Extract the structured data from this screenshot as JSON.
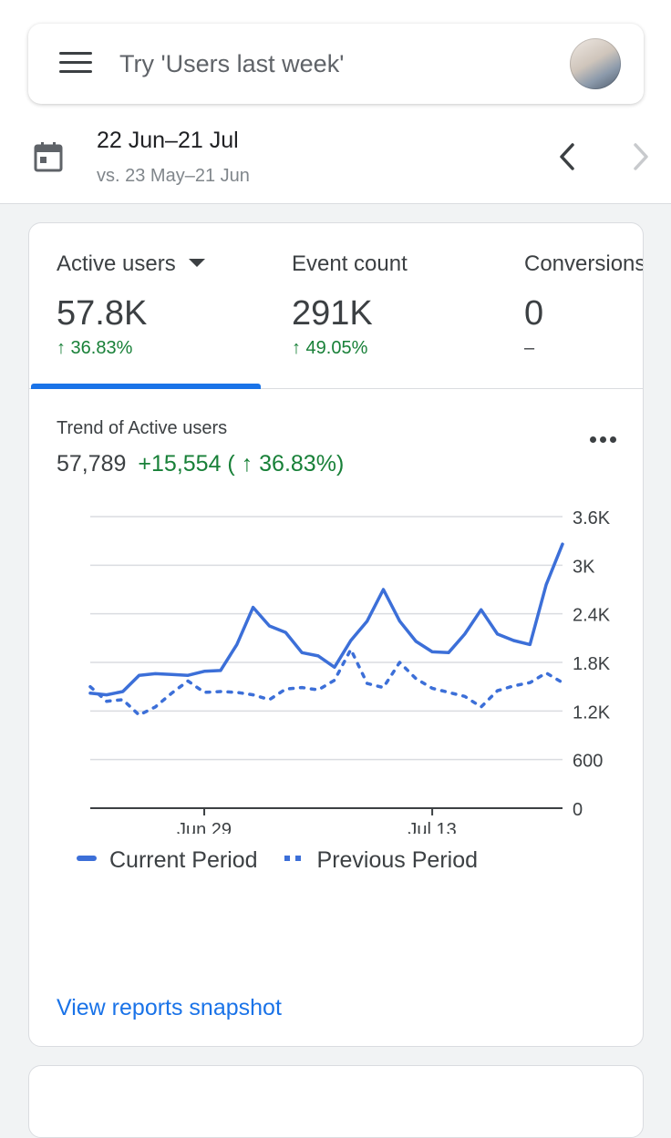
{
  "search": {
    "placeholder": "Try 'Users last week'"
  },
  "date_range": {
    "primary": "22 Jun–21 Jul",
    "comparison": "vs. 23 May–21 Jun"
  },
  "metrics": [
    {
      "label": "Active users",
      "value": "57.8K",
      "change": "↑ 36.83%"
    },
    {
      "label": "Event count",
      "value": "291K",
      "change": "↑ 49.05%"
    },
    {
      "label": "Conversions",
      "value": "0",
      "change": "–"
    }
  ],
  "trend": {
    "title": "Trend of Active users",
    "total": "57,789",
    "delta": "+15,554 ( ↑ 36.83%)"
  },
  "chart_data": {
    "type": "line",
    "x": [
      "Jun 22",
      "Jun 23",
      "Jun 24",
      "Jun 25",
      "Jun 26",
      "Jun 27",
      "Jun 28",
      "Jun 29",
      "Jun 30",
      "Jul 1",
      "Jul 2",
      "Jul 3",
      "Jul 4",
      "Jul 5",
      "Jul 6",
      "Jul 7",
      "Jul 8",
      "Jul 9",
      "Jul 10",
      "Jul 11",
      "Jul 12",
      "Jul 13",
      "Jul 14",
      "Jul 15",
      "Jul 16",
      "Jul 17",
      "Jul 18",
      "Jul 19",
      "Jul 20",
      "Jul 21"
    ],
    "xtick_labels": [
      {
        "label": "Jun 29",
        "index": 7
      },
      {
        "label": "Jul 13",
        "index": 21
      }
    ],
    "series": [
      {
        "name": "Current Period",
        "style": "solid",
        "color": "#3c6fd8",
        "values": [
          1420,
          1400,
          1440,
          1640,
          1660,
          1650,
          1640,
          1690,
          1700,
          2020,
          2480,
          2250,
          2170,
          1920,
          1880,
          1740,
          2070,
          2310,
          2700,
          2310,
          2060,
          1930,
          1920,
          2150,
          2450,
          2150,
          2070,
          2020,
          2760,
          3260
        ]
      },
      {
        "name": "Previous Period",
        "style": "dotted",
        "color": "#3c6fd8",
        "values": [
          1500,
          1320,
          1340,
          1150,
          1250,
          1420,
          1570,
          1430,
          1440,
          1430,
          1400,
          1340,
          1470,
          1490,
          1460,
          1580,
          1960,
          1540,
          1490,
          1800,
          1600,
          1480,
          1430,
          1380,
          1250,
          1450,
          1510,
          1550,
          1670,
          1550
        ]
      }
    ],
    "yticks": [
      "3.6K",
      "3K",
      "2.4K",
      "1.8K",
      "1.2K",
      "600",
      "0"
    ],
    "ytick_values": [
      3600,
      3000,
      2400,
      1800,
      1200,
      600,
      0
    ],
    "ylim": [
      0,
      3600
    ],
    "grid": true,
    "legend": "bottom"
  },
  "footer": {
    "view_reports": "View reports snapshot"
  }
}
